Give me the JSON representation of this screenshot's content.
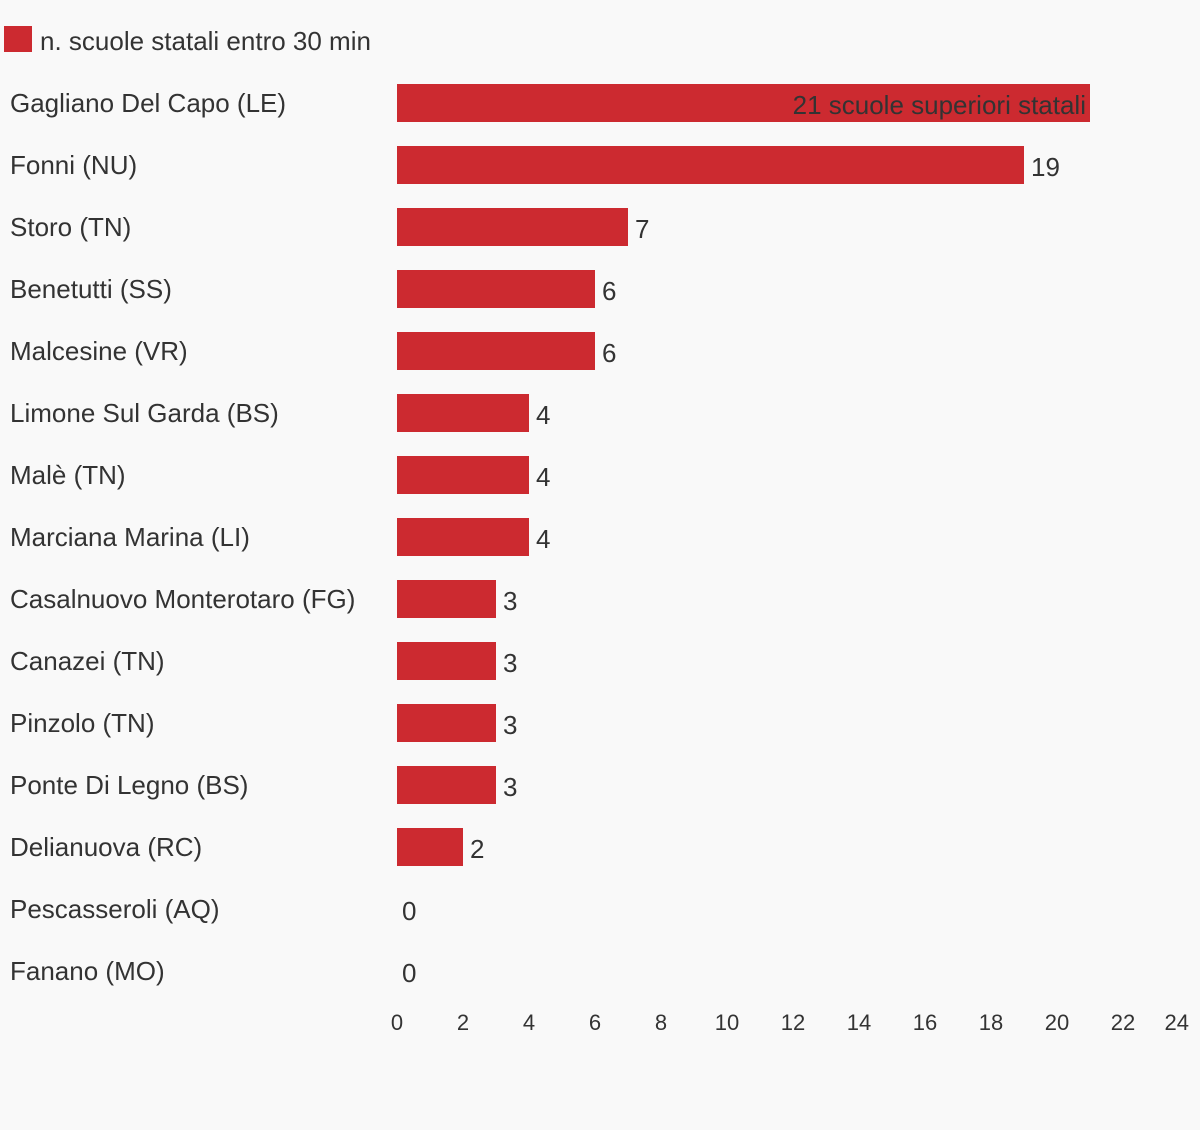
{
  "legend": {
    "label": "n. scuole statali entro 30 min",
    "swatch_color": "#cc2a30"
  },
  "colors": {
    "bar": "#cc2a30",
    "text": "#333333",
    "background": "#f9f9f9"
  },
  "chart_data": {
    "type": "bar",
    "orientation": "horizontal",
    "categories": [
      "Gagliano Del Capo (LE)",
      "Fonni (NU)",
      "Storo (TN)",
      "Benetutti (SS)",
      "Malcesine (VR)",
      "Limone Sul Garda (BS)",
      "Malè (TN)",
      "Marciana Marina (LI)",
      "Casalnuovo Monterotaro (FG)",
      "Canazei (TN)",
      "Pinzolo (TN)",
      "Ponte Di Legno (BS)",
      "Delianuova (RC)",
      "Pescasseroli (AQ)",
      "Fanano (MO)"
    ],
    "series": [
      {
        "name": "n. scuole statali entro 30 min",
        "values": [
          21,
          19,
          7,
          6,
          6,
          4,
          4,
          4,
          3,
          3,
          3,
          3,
          2,
          0,
          0
        ]
      }
    ],
    "data_labels": [
      "21 scuole superiori statali",
      "19",
      "7",
      "6",
      "6",
      "4",
      "4",
      "4",
      "3",
      "3",
      "3",
      "3",
      "2",
      "0",
      "0"
    ],
    "xlim": [
      0,
      24
    ],
    "x_ticks": [
      "0",
      "2",
      "4",
      "6",
      "8",
      "10",
      "12",
      "14",
      "16",
      "18",
      "20",
      "22",
      "24"
    ],
    "grid": false,
    "legend_position": "top-left",
    "title": "",
    "xlabel": "",
    "ylabel": ""
  }
}
